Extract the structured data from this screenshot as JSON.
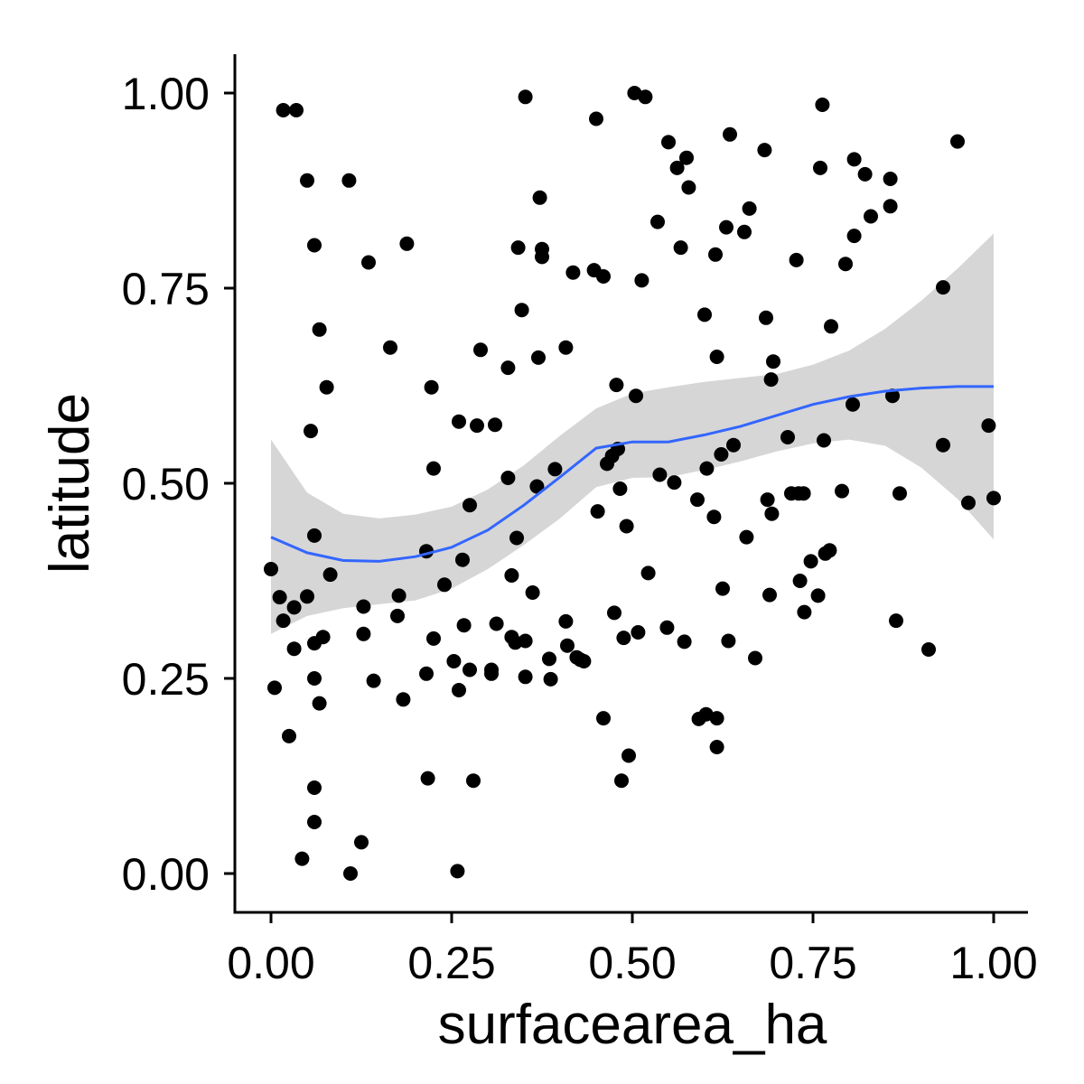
{
  "chart_data": {
    "type": "scatter",
    "xlabel": "surfacearea_ha",
    "ylabel": "latitude",
    "xlim": [
      -0.1,
      1.05
    ],
    "ylim": [
      -0.05,
      1.05
    ],
    "xticks": [
      0,
      0.25,
      0.5,
      0.75,
      1
    ],
    "yticks": [
      0,
      0.25,
      0.5,
      0.75,
      1
    ],
    "xtick_labels": [
      "0.00",
      "0.25",
      "0.50",
      "0.75",
      "1.00"
    ],
    "ytick_labels": [
      "0.00",
      "0.25",
      "0.50",
      "0.75",
      "1.00"
    ],
    "grid": false,
    "legend": "none",
    "colors": {
      "points": "#000000",
      "smooth_line": "#3366FF",
      "ribbon": "#999999"
    },
    "points": [
      [
        0.0,
        0.39
      ],
      [
        0.005,
        0.238
      ],
      [
        0.012,
        0.354
      ],
      [
        0.017,
        0.324
      ],
      [
        0.017,
        0.978
      ],
      [
        0.025,
        0.176
      ],
      [
        0.032,
        0.341
      ],
      [
        0.032,
        0.288
      ],
      [
        0.035,
        0.978
      ],
      [
        0.043,
        0.019
      ],
      [
        0.05,
        0.888
      ],
      [
        0.05,
        0.355
      ],
      [
        0.055,
        0.567
      ],
      [
        0.06,
        0.805
      ],
      [
        0.06,
        0.433
      ],
      [
        0.06,
        0.295
      ],
      [
        0.06,
        0.25
      ],
      [
        0.06,
        0.11
      ],
      [
        0.06,
        0.066
      ],
      [
        0.067,
        0.697
      ],
      [
        0.067,
        0.218
      ],
      [
        0.072,
        0.303
      ],
      [
        0.077,
        0.623
      ],
      [
        0.082,
        0.383
      ],
      [
        0.108,
        0.888
      ],
      [
        0.11,
        0.0
      ],
      [
        0.125,
        0.04
      ],
      [
        0.128,
        0.342
      ],
      [
        0.128,
        0.307
      ],
      [
        0.135,
        0.783
      ],
      [
        0.142,
        0.247
      ],
      [
        0.165,
        0.674
      ],
      [
        0.175,
        0.33
      ],
      [
        0.177,
        0.356
      ],
      [
        0.183,
        0.223
      ],
      [
        0.188,
        0.807
      ],
      [
        0.215,
        0.413
      ],
      [
        0.215,
        0.256
      ],
      [
        0.217,
        0.122
      ],
      [
        0.222,
        0.623
      ],
      [
        0.225,
        0.519
      ],
      [
        0.225,
        0.301
      ],
      [
        0.24,
        0.37
      ],
      [
        0.253,
        0.272
      ],
      [
        0.258,
        0.003
      ],
      [
        0.26,
        0.579
      ],
      [
        0.26,
        0.235
      ],
      [
        0.265,
        0.402
      ],
      [
        0.267,
        0.318
      ],
      [
        0.275,
        0.472
      ],
      [
        0.275,
        0.261
      ],
      [
        0.28,
        0.119
      ],
      [
        0.285,
        0.574
      ],
      [
        0.29,
        0.671
      ],
      [
        0.305,
        0.261
      ],
      [
        0.305,
        0.256
      ],
      [
        0.31,
        0.575
      ],
      [
        0.312,
        0.32
      ],
      [
        0.328,
        0.507
      ],
      [
        0.328,
        0.648
      ],
      [
        0.333,
        0.382
      ],
      [
        0.333,
        0.303
      ],
      [
        0.338,
        0.296
      ],
      [
        0.34,
        0.43
      ],
      [
        0.342,
        0.802
      ],
      [
        0.347,
        0.722
      ],
      [
        0.352,
        0.995
      ],
      [
        0.352,
        0.298
      ],
      [
        0.352,
        0.252
      ],
      [
        0.362,
        0.36
      ],
      [
        0.368,
        0.496
      ],
      [
        0.37,
        0.661
      ],
      [
        0.372,
        0.866
      ],
      [
        0.375,
        0.79
      ],
      [
        0.375,
        0.8
      ],
      [
        0.385,
        0.275
      ],
      [
        0.387,
        0.249
      ],
      [
        0.393,
        0.518
      ],
      [
        0.408,
        0.674
      ],
      [
        0.408,
        0.323
      ],
      [
        0.41,
        0.292
      ],
      [
        0.418,
        0.77
      ],
      [
        0.423,
        0.277
      ],
      [
        0.428,
        0.274
      ],
      [
        0.433,
        0.272
      ],
      [
        0.447,
        0.773
      ],
      [
        0.45,
        0.967
      ],
      [
        0.452,
        0.464
      ],
      [
        0.46,
        0.765
      ],
      [
        0.46,
        0.199
      ],
      [
        0.465,
        0.525
      ],
      [
        0.472,
        0.535
      ],
      [
        0.475,
        0.334
      ],
      [
        0.478,
        0.626
      ],
      [
        0.48,
        0.544
      ],
      [
        0.483,
        0.493
      ],
      [
        0.485,
        0.119
      ],
      [
        0.488,
        0.302
      ],
      [
        0.492,
        0.445
      ],
      [
        0.495,
        0.151
      ],
      [
        0.503,
        1.0
      ],
      [
        0.505,
        0.612
      ],
      [
        0.508,
        0.309
      ],
      [
        0.513,
        0.76
      ],
      [
        0.518,
        0.995
      ],
      [
        0.522,
        0.385
      ],
      [
        0.535,
        0.835
      ],
      [
        0.538,
        0.511
      ],
      [
        0.548,
        0.315
      ],
      [
        0.55,
        0.937
      ],
      [
        0.558,
        0.501
      ],
      [
        0.562,
        0.904
      ],
      [
        0.567,
        0.802
      ],
      [
        0.572,
        0.297
      ],
      [
        0.575,
        0.917
      ],
      [
        0.578,
        0.879
      ],
      [
        0.59,
        0.479
      ],
      [
        0.592,
        0.198
      ],
      [
        0.6,
        0.716
      ],
      [
        0.602,
        0.204
      ],
      [
        0.603,
        0.519
      ],
      [
        0.613,
        0.457
      ],
      [
        0.615,
        0.793
      ],
      [
        0.617,
        0.662
      ],
      [
        0.617,
        0.199
      ],
      [
        0.617,
        0.162
      ],
      [
        0.623,
        0.537
      ],
      [
        0.625,
        0.365
      ],
      [
        0.63,
        0.828
      ],
      [
        0.633,
        0.298
      ],
      [
        0.635,
        0.947
      ],
      [
        0.64,
        0.549
      ],
      [
        0.655,
        0.822
      ],
      [
        0.658,
        0.431
      ],
      [
        0.662,
        0.852
      ],
      [
        0.67,
        0.276
      ],
      [
        0.683,
        0.927
      ],
      [
        0.685,
        0.712
      ],
      [
        0.687,
        0.479
      ],
      [
        0.69,
        0.357
      ],
      [
        0.692,
        0.633
      ],
      [
        0.693,
        0.461
      ],
      [
        0.695,
        0.656
      ],
      [
        0.715,
        0.559
      ],
      [
        0.72,
        0.487
      ],
      [
        0.727,
        0.786
      ],
      [
        0.73,
        0.487
      ],
      [
        0.732,
        0.375
      ],
      [
        0.737,
        0.487
      ],
      [
        0.738,
        0.335
      ],
      [
        0.747,
        0.4
      ],
      [
        0.757,
        0.356
      ],
      [
        0.76,
        0.904
      ],
      [
        0.763,
        0.985
      ],
      [
        0.765,
        0.555
      ],
      [
        0.767,
        0.41
      ],
      [
        0.773,
        0.414
      ],
      [
        0.775,
        0.701
      ],
      [
        0.79,
        0.49
      ],
      [
        0.795,
        0.781
      ],
      [
        0.805,
        0.601
      ],
      [
        0.807,
        0.817
      ],
      [
        0.807,
        0.915
      ],
      [
        0.822,
        0.896
      ],
      [
        0.83,
        0.842
      ],
      [
        0.857,
        0.855
      ],
      [
        0.857,
        0.89
      ],
      [
        0.86,
        0.612
      ],
      [
        0.865,
        0.324
      ],
      [
        0.87,
        0.487
      ],
      [
        0.91,
        0.287
      ],
      [
        0.93,
        0.751
      ],
      [
        0.93,
        0.549
      ],
      [
        0.95,
        0.938
      ],
      [
        0.965,
        0.475
      ],
      [
        0.993,
        0.574
      ],
      [
        1.0,
        0.481
      ]
    ],
    "smooth": {
      "method": "loess",
      "x": [
        0.0,
        0.05,
        0.1,
        0.15,
        0.2,
        0.25,
        0.3,
        0.35,
        0.4,
        0.45,
        0.5,
        0.55,
        0.6,
        0.65,
        0.7,
        0.75,
        0.8,
        0.85,
        0.9,
        0.95,
        1.0
      ],
      "y": [
        0.431,
        0.411,
        0.401,
        0.4,
        0.406,
        0.418,
        0.44,
        0.472,
        0.508,
        0.545,
        0.553,
        0.553,
        0.562,
        0.573,
        0.587,
        0.601,
        0.611,
        0.618,
        0.622,
        0.624,
        0.624
      ],
      "lower": [
        0.307,
        0.33,
        0.34,
        0.345,
        0.35,
        0.365,
        0.39,
        0.421,
        0.455,
        0.495,
        0.507,
        0.508,
        0.517,
        0.528,
        0.541,
        0.551,
        0.556,
        0.548,
        0.52,
        0.48,
        0.428
      ],
      "upper": [
        0.556,
        0.488,
        0.461,
        0.455,
        0.46,
        0.47,
        0.492,
        0.523,
        0.561,
        0.596,
        0.615,
        0.623,
        0.63,
        0.635,
        0.64,
        0.652,
        0.67,
        0.698,
        0.734,
        0.775,
        0.82
      ]
    }
  }
}
